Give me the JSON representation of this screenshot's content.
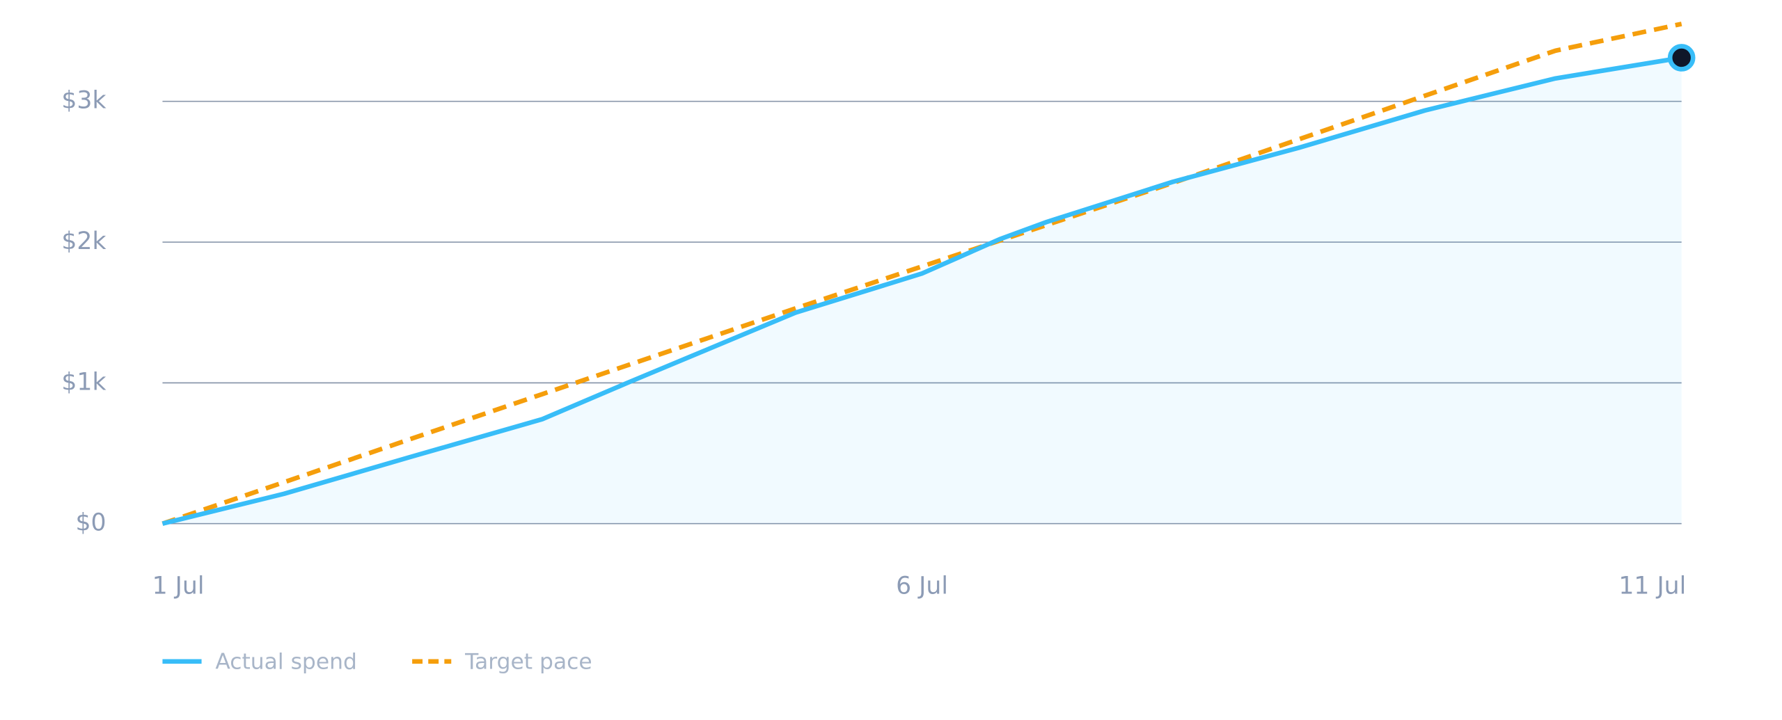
{
  "chart_data": {
    "type": "line",
    "x_unit": "day of month",
    "series": [
      {
        "name": "Actual spend",
        "color": "#38bdf8",
        "style": "solid",
        "area": true,
        "end_marker": true,
        "x": [
          1,
          1.8,
          2.63,
          3.5,
          4.06,
          5.17,
          6,
          6.51,
          6.82,
          7.65,
          8.48,
          9.31,
          10.17,
          11
        ],
        "values": [
          0,
          212,
          473,
          742,
          1000,
          1500,
          1777,
          2020,
          2143,
          2428,
          2670,
          2935,
          3163,
          3310
        ]
      },
      {
        "name": "Target pace",
        "color": "#f59e0b",
        "style": "dashed",
        "x": [
          1,
          3.5,
          5.17,
          6.51,
          7.65,
          9.31,
          10.17,
          11
        ],
        "values": [
          0,
          920,
          1530,
          2010,
          2420,
          3040,
          3360,
          3550
        ]
      }
    ],
    "xlim": [
      1,
      11
    ],
    "xticks": [
      {
        "value": 1,
        "label": "1 Jul"
      },
      {
        "value": 6,
        "label": "6 Jul"
      },
      {
        "value": 11,
        "label": "11 Jul"
      }
    ],
    "ylim": [
      0,
      3720
    ],
    "yticks": [
      {
        "value": 0,
        "label": "$0"
      },
      {
        "value": 1000,
        "label": "$1k"
      },
      {
        "value": 2000,
        "label": "$2k"
      },
      {
        "value": 3000,
        "label": "$3k"
      }
    ],
    "grid": true,
    "legend": "bottom-left"
  }
}
